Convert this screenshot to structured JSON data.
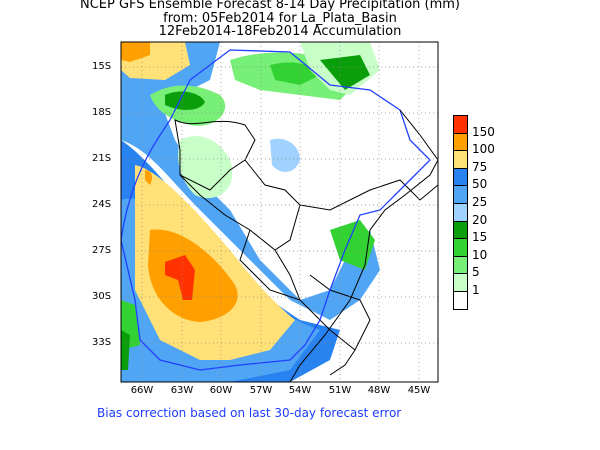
{
  "title": {
    "line1": "NCEP GFS Ensemble Forecast 8-14 Day Precipitation (mm)",
    "line2": "from: 05Feb2014   for La_Plata_Basin",
    "line3": "12Feb2014-18Feb2014 Accumulation"
  },
  "lat_labels": [
    "15S",
    "18S",
    "21S",
    "24S",
    "27S",
    "30S",
    "33S"
  ],
  "lon_labels": [
    "66W",
    "63W",
    "60W",
    "57W",
    "54W",
    "51W",
    "48W",
    "45W"
  ],
  "colorbar": {
    "labels": [
      "150",
      "100",
      "75",
      "50",
      "25",
      "20",
      "15",
      "10",
      "5",
      "1"
    ],
    "colors": [
      "#ff3200",
      "#ffa000",
      "#ffe178",
      "#2882f0",
      "#50a5f5",
      "#a0d2ff",
      "#0a9e0a",
      "#32d232",
      "#78f078",
      "#c8ffc8",
      "#ffffff"
    ]
  },
  "footer": "Bias correction based on last 30-day forecast error"
}
